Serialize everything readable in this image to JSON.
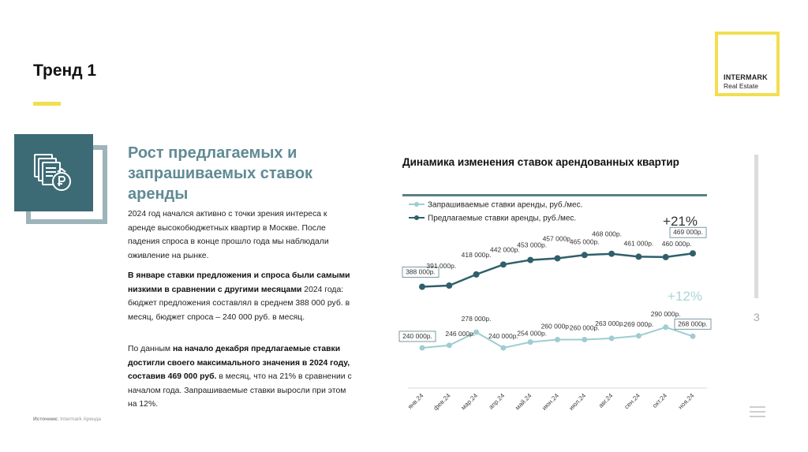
{
  "slide": {
    "title": "Тренд 1",
    "page_number": "3"
  },
  "logo": {
    "brand": "INTERMARK",
    "sub": "Real Estate"
  },
  "content": {
    "heading": "Рост предлагаемых и запрашиваемых ставок аренды",
    "paragraph1": "2024 год начался активно с точки зрения интереса к аренде высокобюджетных квартир в Москве. После падения спроса в конце прошло года мы наблюдали оживление на рынке.",
    "paragraph2_bold": "В январе ставки предложения и спроса были самыми низкими в сравнении с другими месяцами",
    "paragraph2_rest": " 2024 года: бюджет предложения составлял в среднем 388 000 руб. в месяц, бюджет спроса – 240 000 руб. в месяц.",
    "paragraph3_a": "По данным ",
    "paragraph3_bold1": "на начало декабря предлагаемые ставки достигли своего максимального значения в 2024 году, составив 469 000 руб.",
    "paragraph3_b": " в месяц, что на 21% в сравнении с началом года. Запрашиваемые ставки выросли при этом на 12%.",
    "source_label": "Источник:",
    "source_value": "Intermark Аренда"
  },
  "chart_data": {
    "type": "line",
    "title": "Динамика изменения ставок арендованных квартир",
    "categories": [
      "янв.24",
      "фев.24",
      "мар.24",
      "апр.24",
      "май.24",
      "июн.24",
      "июл.24",
      "авг.24",
      "сен.24",
      "окт.24",
      "ноя.24"
    ],
    "series": [
      {
        "name": "Запрашиваемые ставки аренды, руб./мес.",
        "values": [
          240000,
          246000,
          278000,
          240000,
          254000,
          260000,
          260000,
          263000,
          269000,
          290000,
          268000
        ],
        "labels": [
          "240 000р.",
          "246 000р.",
          "278 000р.",
          "240 000р.",
          "254 000р.",
          "260 000р.",
          "260 000р.",
          "263 000р.",
          "269 000р.",
          "290 000р.",
          "268 000р."
        ],
        "color": "#9ecdd1",
        "change": "+12%"
      },
      {
        "name": "Предлагаемые ставки аренды, руб./мес.",
        "values": [
          388000,
          391000,
          418000,
          442000,
          453000,
          457000,
          465000,
          468000,
          461000,
          460000,
          469000
        ],
        "labels": [
          "388 000р.",
          "391 000р.",
          "418 000р.",
          "442 000р.",
          "453 000р.",
          "457 000р.",
          "465 000р.",
          "468 000р.",
          "461 000р.",
          "460 000р.",
          "469 000р."
        ],
        "color": "#2f5f6b",
        "change": "+21%"
      }
    ],
    "ylim": [
      150000,
      500000
    ],
    "grid": false,
    "legend": "top-left"
  }
}
